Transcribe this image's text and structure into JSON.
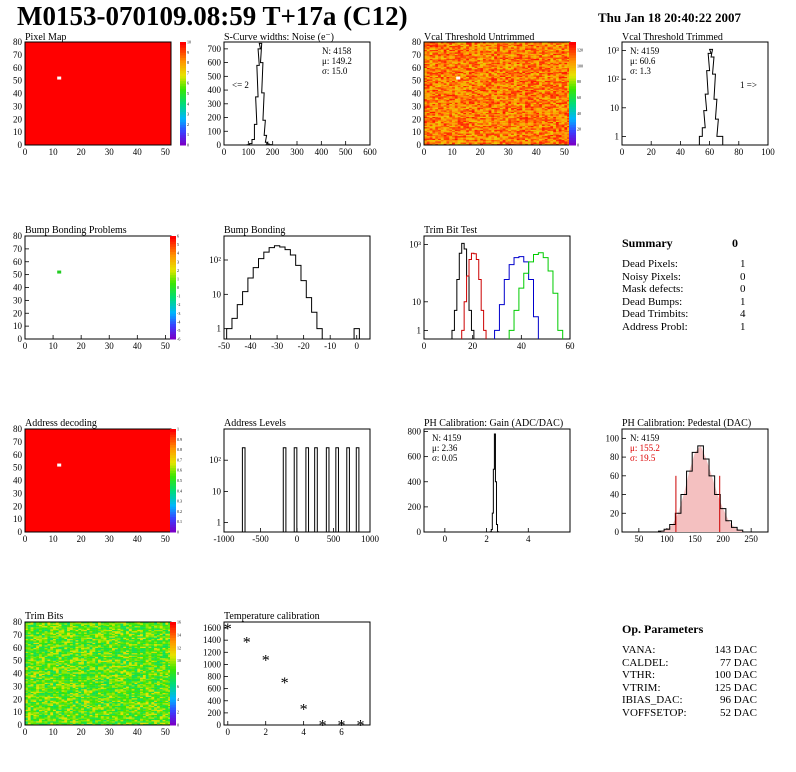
{
  "header": {
    "title": "M0153-070109.08:59 T+17a (C12)",
    "date": "Thu Jan 18 20:40:22 2007"
  },
  "colors": {
    "map_red": "#ff0000",
    "bump_marker": "#22cc22",
    "trim_lines": [
      "#000000",
      "#cc0000",
      "#0000cc",
      "#00cc00"
    ],
    "pedestal_red": "#cc0000",
    "stat_red": "#dd0000"
  },
  "chart_data": [
    {
      "id": "pixel-map",
      "type": "heatmap",
      "title": "Pixel Map",
      "xlim": [
        0,
        52
      ],
      "ylim": [
        0,
        80
      ],
      "xticks": [
        0,
        10,
        20,
        30,
        40,
        50
      ],
      "yticks": [
        0,
        10,
        20,
        30,
        40,
        50,
        60,
        70,
        80
      ],
      "fill": "uniform red",
      "hot_pixel": [
        12,
        52
      ],
      "zlim": [
        0,
        10
      ],
      "zticks": [
        0,
        1,
        2,
        3,
        4,
        5,
        6,
        7,
        8,
        9,
        10
      ]
    },
    {
      "id": "scurve",
      "type": "line",
      "title": "S-Curve widths: Noise (e⁻)",
      "xlim": [
        0,
        600
      ],
      "ylim": [
        0,
        750
      ],
      "xticks": [
        0,
        100,
        200,
        300,
        400,
        500,
        600
      ],
      "yticks": [
        0,
        100,
        200,
        300,
        400,
        500,
        600,
        700
      ],
      "x": [
        100,
        110,
        120,
        130,
        135,
        140,
        145,
        150,
        155,
        160,
        165,
        170,
        175,
        180,
        190,
        200
      ],
      "y": [
        2,
        10,
        40,
        150,
        350,
        580,
        700,
        740,
        600,
        380,
        180,
        70,
        20,
        8,
        3,
        0
      ],
      "stats": {
        "N": "4158",
        "mu": "149.2",
        "sigma": "15.0"
      },
      "annotation": "<= 2"
    },
    {
      "id": "vcal-untrimmed",
      "type": "heatmap",
      "title": "Vcal Threshold Untrimmed",
      "xlim": [
        0,
        52
      ],
      "ylim": [
        0,
        80
      ],
      "xticks": [
        0,
        10,
        20,
        30,
        40,
        50
      ],
      "yticks": [
        0,
        10,
        20,
        30,
        40,
        50,
        60,
        70,
        80
      ],
      "fill": "random 80-120 orange/yellow noise",
      "hot_pixel": [
        12,
        52
      ],
      "zlim": [
        0,
        130
      ],
      "zticks": [
        0,
        20,
        40,
        60,
        80,
        100,
        120
      ]
    },
    {
      "id": "vcal-trimmed",
      "type": "line",
      "title": "Vcal Threshold Trimmed",
      "log_y": true,
      "xlim": [
        0,
        100
      ],
      "ylim": [
        0.5,
        2000
      ],
      "xticks": [
        0,
        20,
        40,
        60,
        80,
        100
      ],
      "yticks": [
        1,
        10,
        100,
        1000
      ],
      "x": [
        54,
        56,
        57,
        58,
        59,
        60,
        61,
        62,
        63,
        64,
        65,
        66,
        68
      ],
      "y": [
        1,
        2,
        8,
        30,
        200,
        800,
        1100,
        600,
        150,
        20,
        4,
        1,
        1
      ],
      "stats": {
        "N": "4159",
        "mu": "60.6",
        "sigma": "1.3"
      },
      "annotation": "1 =>"
    },
    {
      "id": "bump-problems",
      "type": "heatmap",
      "title": "Bump Bonding Problems",
      "xlim": [
        0,
        52
      ],
      "ylim": [
        0,
        80
      ],
      "xticks": [
        0,
        10,
        20,
        30,
        40,
        50
      ],
      "yticks": [
        0,
        10,
        20,
        30,
        40,
        50,
        60,
        70,
        80
      ],
      "fill": "white",
      "marker": [
        12,
        52
      ],
      "zlim": [
        -6,
        6
      ],
      "zticks": [
        -6,
        -5,
        -4,
        -3,
        -2,
        -1,
        0,
        1,
        2,
        3,
        4,
        5,
        6
      ]
    },
    {
      "id": "bump-bonding",
      "type": "line",
      "title": "Bump Bonding",
      "log_y": true,
      "xlim": [
        -50,
        5
      ],
      "ylim": [
        0.5,
        500
      ],
      "xticks": [
        -50,
        -40,
        -30,
        -20,
        -10,
        0
      ],
      "yticks": [
        1,
        10,
        100
      ],
      "x": [
        -48,
        -46,
        -44,
        -42,
        -40,
        -38,
        -36,
        -34,
        -32,
        -30,
        -28,
        -26,
        -24,
        -22,
        -20,
        -18,
        -16,
        -14,
        -12,
        -10
      ],
      "y": [
        1,
        2,
        5,
        12,
        30,
        60,
        110,
        170,
        230,
        260,
        240,
        200,
        140,
        70,
        25,
        8,
        3,
        1,
        0.5,
        0.5
      ],
      "extra_bin": [
        0,
        1
      ]
    },
    {
      "id": "trim-bit-test",
      "type": "line",
      "title": "Trim Bit Test",
      "log_y": true,
      "xlim": [
        0,
        60
      ],
      "ylim": [
        0.5,
        2000
      ],
      "xticks": [
        0,
        20,
        40,
        60
      ],
      "yticks": [
        1,
        10,
        1000
      ],
      "series": [
        {
          "x": [
            12,
            13,
            14,
            15,
            16,
            17,
            18,
            19,
            20
          ],
          "y": [
            1,
            5,
            60,
            500,
            1100,
            700,
            80,
            5,
            1
          ]
        },
        {
          "x": [
            16,
            17,
            18,
            19,
            20,
            21,
            22,
            23,
            24,
            25
          ],
          "y": [
            1,
            10,
            80,
            300,
            500,
            480,
            300,
            60,
            5,
            1
          ]
        },
        {
          "x": [
            30,
            32,
            34,
            36,
            38,
            40,
            42,
            44,
            46
          ],
          "y": [
            1,
            8,
            60,
            200,
            350,
            380,
            250,
            60,
            3
          ]
        },
        {
          "x": [
            36,
            38,
            40,
            42,
            44,
            46,
            48,
            50,
            52,
            54,
            56
          ],
          "y": [
            1,
            5,
            30,
            100,
            250,
            450,
            520,
            350,
            120,
            20,
            1
          ]
        }
      ]
    },
    {
      "id": "address-decoding",
      "type": "heatmap",
      "title": "Address decoding",
      "xlim": [
        0,
        52
      ],
      "ylim": [
        0,
        80
      ],
      "xticks": [
        0,
        10,
        20,
        30,
        40,
        50
      ],
      "yticks": [
        0,
        10,
        20,
        30,
        40,
        50,
        60,
        70,
        80
      ],
      "fill": "uniform red",
      "hot_pixel": [
        12,
        52
      ],
      "zlim": [
        0,
        1
      ],
      "zticks": [
        0,
        0.1,
        0.2,
        0.3,
        0.4,
        0.5,
        0.6,
        0.7,
        0.8,
        0.9,
        1
      ]
    },
    {
      "id": "address-levels",
      "type": "line",
      "title": "Address Levels",
      "log_y": true,
      "xlim": [
        -1000,
        1000
      ],
      "ylim": [
        0.5,
        1000
      ],
      "xticks": [
        -1000,
        -500,
        0,
        500,
        1000
      ],
      "yticks": [
        1,
        10,
        100
      ],
      "peaks": [
        -730,
        -170,
        -20,
        140,
        260,
        420,
        550,
        700,
        830
      ],
      "peak_height": 250
    },
    {
      "id": "ph-gain",
      "type": "line",
      "title": "PH Calibration: Gain (ADC/DAC)",
      "xlim": [
        -1,
        6
      ],
      "ylim": [
        0,
        820
      ],
      "xticks": [
        0,
        2,
        4
      ],
      "yticks": [
        0,
        200,
        400,
        600,
        800
      ],
      "x": [
        2.2,
        2.25,
        2.3,
        2.35,
        2.4,
        2.45,
        2.5,
        2.55
      ],
      "y": [
        2,
        20,
        150,
        500,
        780,
        400,
        60,
        2
      ],
      "stats": {
        "N": "4159",
        "mu": "2.36",
        "sigma": "0.05"
      }
    },
    {
      "id": "ph-pedestal",
      "type": "area",
      "title": "PH Calibration: Pedestal (DAC)",
      "xlim": [
        20,
        280
      ],
      "ylim": [
        0,
        110
      ],
      "xticks": [
        50,
        100,
        150,
        200,
        250
      ],
      "yticks": [
        0,
        20,
        40,
        60,
        80,
        100
      ],
      "x": [
        90,
        100,
        110,
        120,
        130,
        140,
        150,
        160,
        170,
        180,
        190,
        200,
        210,
        220,
        230,
        240
      ],
      "y": [
        1,
        3,
        8,
        20,
        40,
        65,
        85,
        92,
        78,
        60,
        40,
        25,
        12,
        5,
        2,
        0
      ],
      "cut_lines": [
        116,
        194
      ],
      "stats": {
        "N": "4159",
        "mu": "155.2",
        "sigma": "19.5"
      }
    },
    {
      "id": "trim-bits",
      "type": "heatmap",
      "title": "Trim Bits",
      "xlim": [
        0,
        52
      ],
      "ylim": [
        0,
        80
      ],
      "xticks": [
        0,
        10,
        20,
        30,
        40,
        50
      ],
      "yticks": [
        0,
        10,
        20,
        30,
        40,
        50,
        60,
        70,
        80
      ],
      "fill": "random 7-11 green/yellow noise",
      "zlim": [
        0,
        16
      ],
      "zticks": [
        0,
        2,
        4,
        6,
        8,
        10,
        12,
        14,
        16
      ]
    },
    {
      "id": "temp-cal",
      "type": "scatter",
      "title": "Temperature calibration",
      "xlim": [
        -0.2,
        7.5
      ],
      "ylim": [
        0,
        1700
      ],
      "xticks": [
        0,
        2,
        4,
        6
      ],
      "yticks": [
        0,
        200,
        400,
        600,
        800,
        1000,
        1200,
        1400,
        1600
      ],
      "x": [
        0,
        1,
        2,
        3,
        4,
        5,
        6,
        7
      ],
      "y": [
        1600,
        1380,
        1080,
        710,
        270,
        10,
        10,
        10
      ]
    }
  ],
  "summary": {
    "title": "Summary",
    "value": "0",
    "rows": [
      {
        "label": "Dead Pixels:",
        "value": "1"
      },
      {
        "label": "Noisy Pixels:",
        "value": "0"
      },
      {
        "label": "Mask defects:",
        "value": "0"
      },
      {
        "label": "Dead Bumps:",
        "value": "1"
      },
      {
        "label": "Dead Trimbits:",
        "value": "4"
      },
      {
        "label": "Address Probl:",
        "value": "1"
      }
    ]
  },
  "op_params": {
    "title": "Op. Parameters",
    "rows": [
      {
        "label": "VANA:",
        "value": "143 DAC"
      },
      {
        "label": "CALDEL:",
        "value": "77 DAC"
      },
      {
        "label": "VTHR:",
        "value": "100 DAC"
      },
      {
        "label": "VTRIM:",
        "value": "125 DAC"
      },
      {
        "label": "IBIAS_DAC:",
        "value": "96 DAC"
      },
      {
        "label": "VOFFSETOP:",
        "value": "52 DAC"
      }
    ]
  }
}
